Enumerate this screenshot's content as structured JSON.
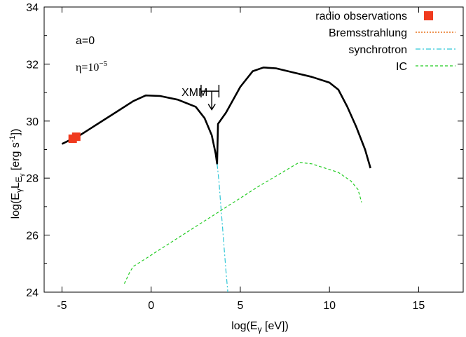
{
  "chart_data": {
    "type": "line",
    "xlabel_main": "log(E",
    "xlabel_sub": "γ",
    "xlabel_tail": " [eV])",
    "ylabel": "log(E_γL_Eγ [erg s⁻¹])",
    "ylabel_parts": {
      "p1": "log(E",
      "s1": "γ",
      "p2": "L",
      "s2": "E",
      "s3": "γ",
      "p3": " [erg s",
      "sup": "-1",
      "p4": "])"
    },
    "xlim": [
      -6,
      17.5
    ],
    "ylim": [
      24,
      34
    ],
    "xticks": [
      -5,
      0,
      5,
      10,
      15
    ],
    "yticks": [
      24,
      26,
      28,
      30,
      32,
      34
    ],
    "annotations": {
      "a_label": "a=0",
      "eta_base": "η=10",
      "eta_exp": "−5",
      "xmm_label": "XMM"
    },
    "legend": {
      "items": [
        {
          "label": "radio observations",
          "style": "square",
          "color": "#f03a1e"
        },
        {
          "label": "Bremsstrahlung",
          "style": "dotted",
          "color": "#e8701a"
        },
        {
          "label": "synchrotron",
          "style": "dashdot",
          "color": "#2fc6d6"
        },
        {
          "label": "IC",
          "style": "dashed",
          "color": "#22cc22"
        }
      ]
    },
    "series": [
      {
        "name": "total",
        "color": "#000000",
        "points": [
          [
            -5.0,
            29.2
          ],
          [
            -4.0,
            29.5
          ],
          [
            -3.0,
            29.9
          ],
          [
            -2.0,
            30.3
          ],
          [
            -1.0,
            30.7
          ],
          [
            -0.3,
            30.9
          ],
          [
            0.5,
            30.88
          ],
          [
            1.5,
            30.75
          ],
          [
            2.5,
            30.5
          ],
          [
            3.0,
            30.1
          ],
          [
            3.4,
            29.5
          ],
          [
            3.62,
            28.85
          ],
          [
            3.7,
            28.5
          ],
          [
            3.75,
            29.9
          ],
          [
            4.2,
            30.3
          ],
          [
            5.0,
            31.2
          ],
          [
            5.7,
            31.75
          ],
          [
            6.3,
            31.88
          ],
          [
            7.0,
            31.85
          ],
          [
            8.0,
            31.7
          ],
          [
            9.0,
            31.55
          ],
          [
            10.0,
            31.35
          ],
          [
            10.5,
            31.1
          ],
          [
            11.0,
            30.5
          ],
          [
            11.5,
            29.8
          ],
          [
            12.0,
            29.0
          ],
          [
            12.3,
            28.35
          ]
        ]
      },
      {
        "name": "synchrotron",
        "color": "#2fc6d6",
        "points": [
          [
            3.7,
            28.5
          ],
          [
            3.8,
            27.9
          ],
          [
            3.9,
            27.1
          ],
          [
            4.0,
            26.3
          ],
          [
            4.1,
            25.5
          ],
          [
            4.2,
            24.7
          ],
          [
            4.3,
            24.0
          ]
        ]
      },
      {
        "name": "IC",
        "color": "#22cc22",
        "points": [
          [
            -1.5,
            24.3
          ],
          [
            -1.2,
            24.7
          ],
          [
            -1.0,
            24.9
          ],
          [
            0.0,
            25.3
          ],
          [
            2.0,
            26.1
          ],
          [
            4.0,
            26.9
          ],
          [
            6.0,
            27.7
          ],
          [
            8.3,
            28.55
          ],
          [
            9.0,
            28.5
          ],
          [
            10.5,
            28.2
          ],
          [
            11.2,
            27.9
          ],
          [
            11.6,
            27.6
          ],
          [
            11.8,
            27.15
          ]
        ]
      }
    ],
    "radio_observations": [
      [
        -4.4,
        29.38
      ],
      [
        -4.2,
        29.45
      ]
    ],
    "xmm_limit": {
      "x_range": [
        2.8,
        3.8
      ],
      "y": 31.05,
      "arrow_x": 3.4,
      "arrow_to": 30.4
    }
  }
}
